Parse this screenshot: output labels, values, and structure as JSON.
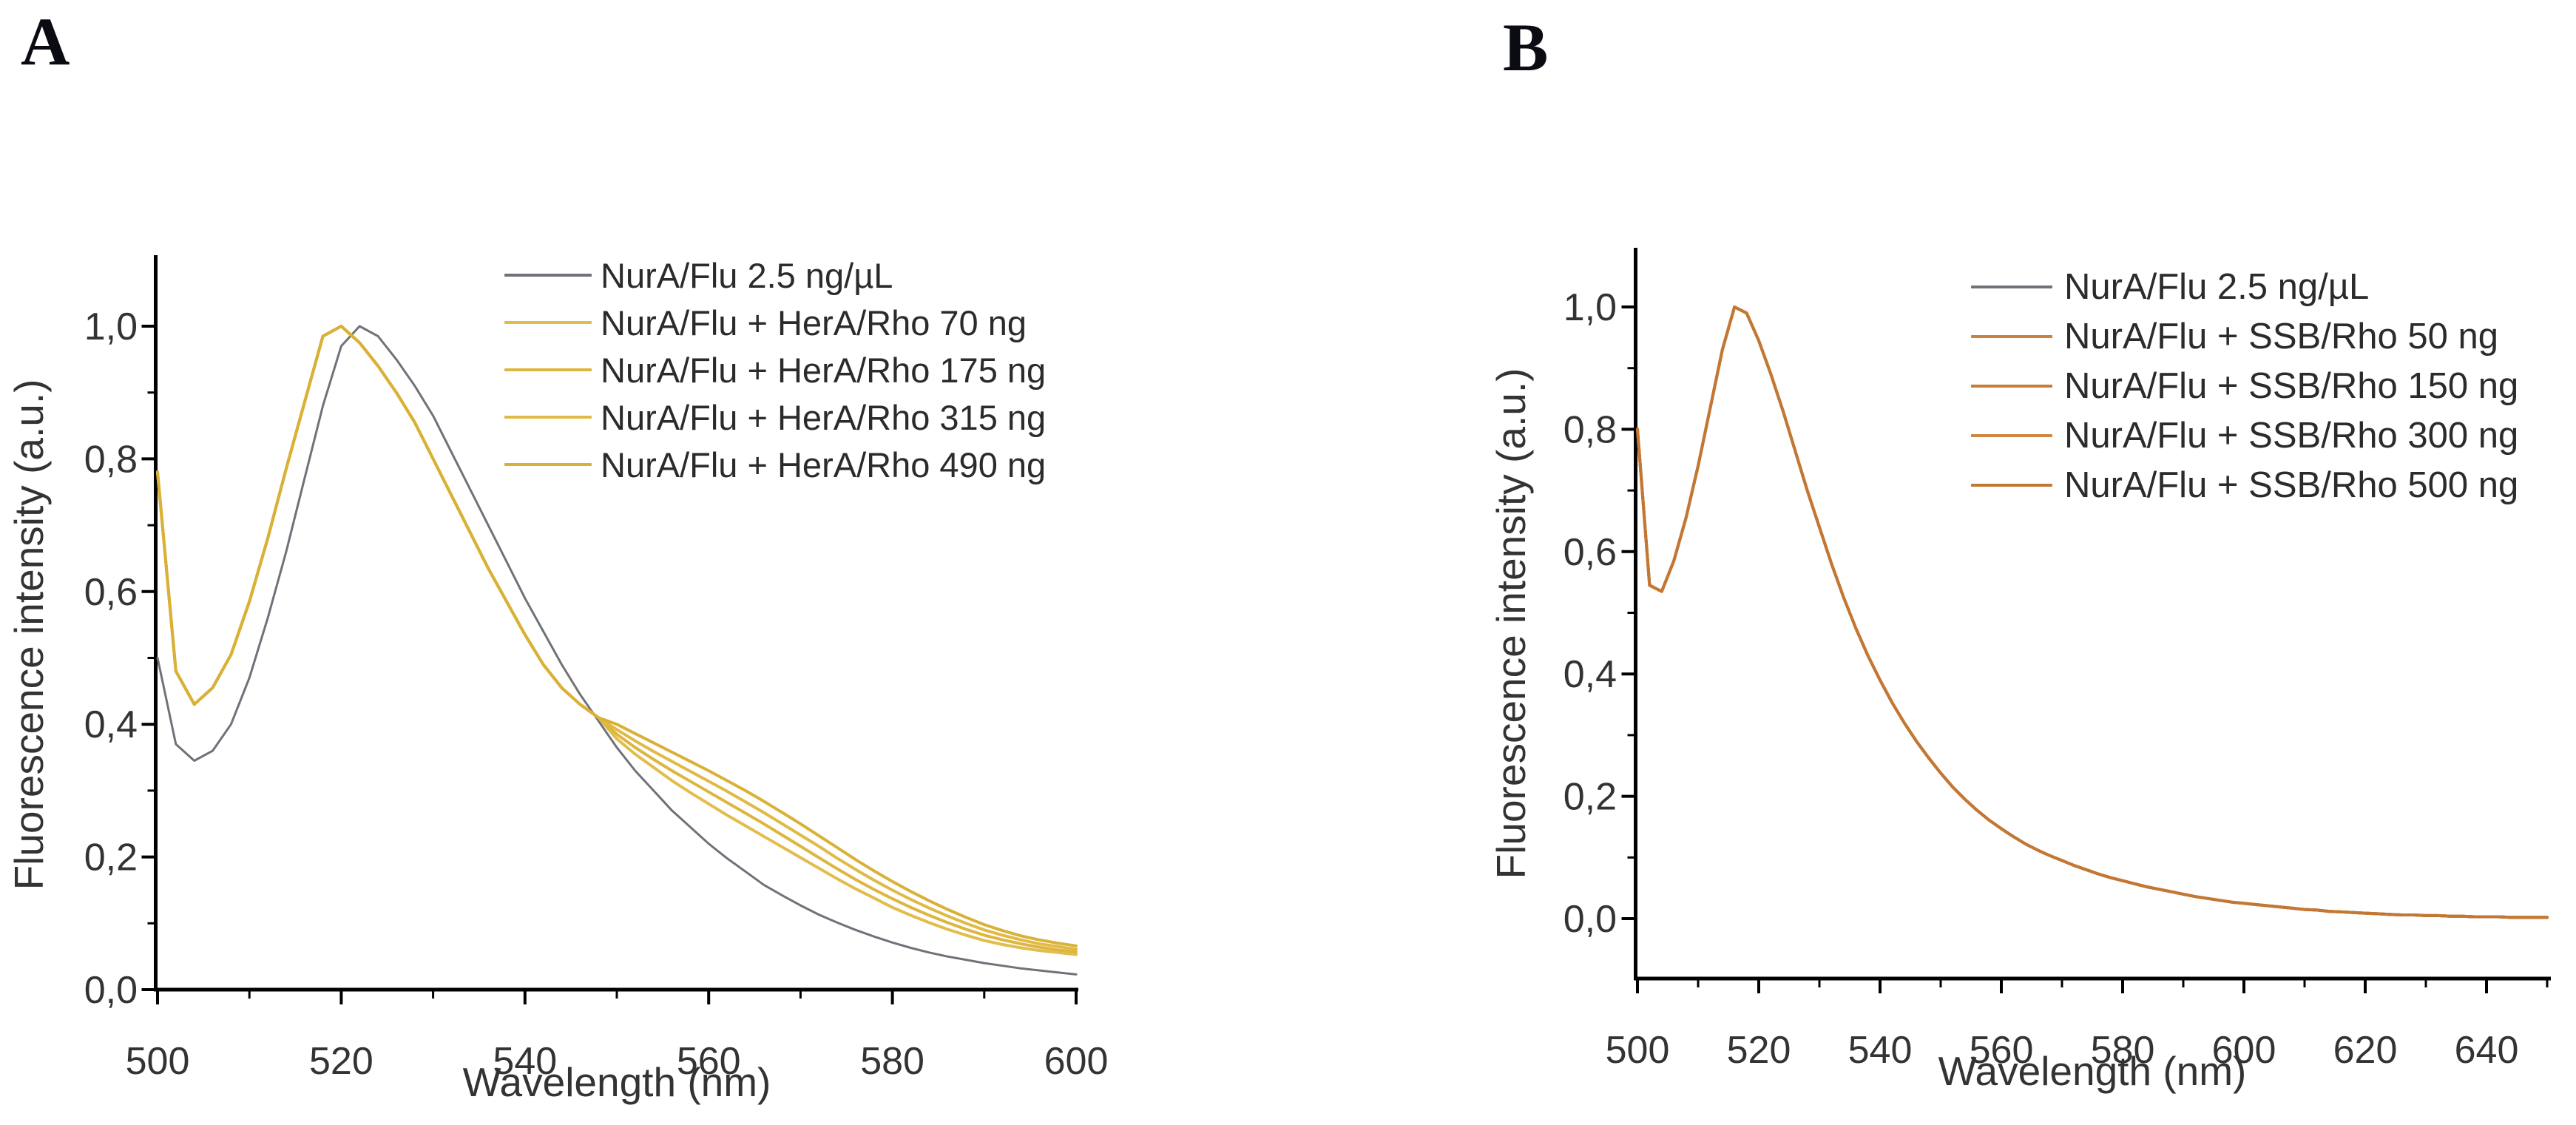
{
  "figure": {
    "background": "#ffffff",
    "axis_color": "#000000",
    "tick_label_color": "#3c3c3c"
  },
  "panels": [
    {
      "letter": "A"
    },
    {
      "letter": "B"
    }
  ],
  "chart_data": [
    {
      "type": "line",
      "panel": "A",
      "title": "",
      "xlabel": "Wavelength (nm)",
      "ylabel": "Fluorescence intensity (a.u.)",
      "xlim": [
        500,
        600
      ],
      "ylim": [
        0,
        1.1
      ],
      "grid": false,
      "legend_position": "top-right",
      "x_major_ticks": [
        500,
        520,
        540,
        560,
        580,
        600
      ],
      "x_major_labels": [
        "500",
        "520",
        "540",
        "560",
        "580",
        "600"
      ],
      "x_minor_ticks": [
        510,
        530,
        550,
        570,
        590
      ],
      "y_major_ticks": [
        0.0,
        0.2,
        0.4,
        0.6,
        0.8,
        1.0
      ],
      "y_major_labels": [
        "0,0",
        "0,2",
        "0,4",
        "0,6",
        "0,8",
        "1,0"
      ],
      "y_minor_ticks": [
        0.1,
        0.3,
        0.5,
        0.7,
        0.9
      ],
      "x_start": 500,
      "x_step": 2,
      "series": [
        {
          "name": "NurA/Flu 2.5 ng/µL",
          "color": "#70727a",
          "values": [
            0.5,
            0.37,
            0.345,
            0.36,
            0.4,
            0.47,
            0.56,
            0.66,
            0.77,
            0.88,
            0.97,
            1.0,
            0.985,
            0.95,
            0.91,
            0.865,
            0.81,
            0.755,
            0.7,
            0.645,
            0.59,
            0.54,
            0.49,
            0.445,
            0.405,
            0.365,
            0.33,
            0.3,
            0.27,
            0.245,
            0.22,
            0.198,
            0.178,
            0.158,
            0.142,
            0.127,
            0.113,
            0.101,
            0.09,
            0.08,
            0.071,
            0.063,
            0.056,
            0.05,
            0.045,
            0.04,
            0.036,
            0.032,
            0.029,
            0.026,
            0.023
          ]
        },
        {
          "name": "NurA/Flu + HerA/Rho 70 ng",
          "color": "#e2bd4c",
          "values": [
            0.78,
            0.48,
            0.43,
            0.455,
            0.505,
            0.585,
            0.68,
            0.785,
            0.885,
            0.985,
            1.0,
            0.975,
            0.94,
            0.9,
            0.855,
            0.8,
            0.745,
            0.69,
            0.635,
            0.585,
            0.535,
            0.49,
            0.455,
            0.43,
            0.41,
            0.378,
            0.355,
            0.335,
            0.315,
            0.297,
            0.28,
            0.263,
            0.247,
            0.231,
            0.215,
            0.199,
            0.183,
            0.167,
            0.152,
            0.138,
            0.124,
            0.112,
            0.101,
            0.091,
            0.082,
            0.074,
            0.068,
            0.063,
            0.059,
            0.056,
            0.053
          ]
        },
        {
          "name": "NurA/Flu + HerA/Rho 175 ng",
          "color": "#ddb63e",
          "values": [
            0.78,
            0.48,
            0.43,
            0.455,
            0.505,
            0.585,
            0.68,
            0.785,
            0.885,
            0.985,
            1.0,
            0.975,
            0.94,
            0.9,
            0.855,
            0.8,
            0.745,
            0.69,
            0.635,
            0.585,
            0.535,
            0.49,
            0.455,
            0.43,
            0.41,
            0.385,
            0.365,
            0.347,
            0.33,
            0.314,
            0.298,
            0.282,
            0.266,
            0.25,
            0.233,
            0.216,
            0.199,
            0.182,
            0.166,
            0.151,
            0.137,
            0.124,
            0.112,
            0.101,
            0.091,
            0.082,
            0.075,
            0.069,
            0.064,
            0.06,
            0.057
          ]
        },
        {
          "name": "NurA/Flu + HerA/Rho 315 ng",
          "color": "#e0ba45",
          "values": [
            0.78,
            0.48,
            0.43,
            0.455,
            0.505,
            0.585,
            0.68,
            0.785,
            0.885,
            0.985,
            1.0,
            0.975,
            0.94,
            0.9,
            0.855,
            0.8,
            0.745,
            0.69,
            0.635,
            0.585,
            0.535,
            0.49,
            0.455,
            0.43,
            0.41,
            0.392,
            0.375,
            0.359,
            0.344,
            0.329,
            0.314,
            0.299,
            0.283,
            0.267,
            0.25,
            0.233,
            0.216,
            0.198,
            0.181,
            0.165,
            0.15,
            0.136,
            0.123,
            0.111,
            0.1,
            0.09,
            0.082,
            0.075,
            0.069,
            0.065,
            0.061
          ]
        },
        {
          "name": "NurA/Flu + HerA/Rho 490 ng",
          "color": "#d9b137",
          "values": [
            0.78,
            0.48,
            0.43,
            0.455,
            0.505,
            0.585,
            0.68,
            0.785,
            0.885,
            0.985,
            1.0,
            0.975,
            0.94,
            0.9,
            0.855,
            0.8,
            0.745,
            0.69,
            0.635,
            0.585,
            0.535,
            0.49,
            0.455,
            0.43,
            0.41,
            0.4,
            0.386,
            0.372,
            0.358,
            0.344,
            0.33,
            0.315,
            0.3,
            0.284,
            0.267,
            0.25,
            0.232,
            0.214,
            0.196,
            0.179,
            0.163,
            0.148,
            0.134,
            0.121,
            0.109,
            0.098,
            0.089,
            0.081,
            0.075,
            0.07,
            0.066
          ]
        }
      ]
    },
    {
      "type": "line",
      "panel": "B",
      "title": "",
      "xlabel": "Wavelength (nm)",
      "ylabel": "Fluorescence intensity (a.u.)",
      "xlim": [
        500,
        650
      ],
      "ylim": [
        -0.1,
        1.1
      ],
      "grid": false,
      "legend_position": "top-right",
      "x_major_ticks": [
        500,
        520,
        540,
        560,
        580,
        600,
        620,
        640
      ],
      "x_major_labels": [
        "500",
        "520",
        "540",
        "560",
        "580",
        "600",
        "620",
        "640"
      ],
      "x_minor_ticks": [
        510,
        530,
        550,
        570,
        590,
        610,
        630,
        650
      ],
      "y_major_ticks": [
        0.0,
        0.2,
        0.4,
        0.6,
        0.8,
        1.0
      ],
      "y_major_labels": [
        "0,0",
        "0,2",
        "0,4",
        "0,6",
        "0,8",
        "1,0"
      ],
      "y_minor_ticks": [
        0.1,
        0.3,
        0.5,
        0.7,
        0.9
      ],
      "x_start": 500,
      "x_step": 2,
      "series": [
        {
          "name": "NurA/Flu 2.5 ng/µL",
          "color": "#70727a",
          "values": [
            0.8,
            0.545,
            0.535,
            0.585,
            0.655,
            0.74,
            0.835,
            0.93,
            1.0,
            0.99,
            0.945,
            0.89,
            0.83,
            0.765,
            0.7,
            0.64,
            0.58,
            0.525,
            0.475,
            0.43,
            0.39,
            0.353,
            0.32,
            0.29,
            0.263,
            0.238,
            0.215,
            0.195,
            0.177,
            0.161,
            0.147,
            0.134,
            0.122,
            0.112,
            0.103,
            0.095,
            0.087,
            0.08,
            0.073,
            0.067,
            0.062,
            0.057,
            0.052,
            0.048,
            0.044,
            0.04,
            0.036,
            0.033,
            0.03,
            0.027,
            0.025,
            0.023,
            0.021,
            0.019,
            0.017,
            0.015,
            0.014,
            0.012,
            0.011,
            0.01,
            0.009,
            0.008,
            0.007,
            0.006,
            0.006,
            0.005,
            0.005,
            0.004,
            0.004,
            0.003,
            0.003,
            0.003,
            0.002,
            0.002,
            0.002,
            0.002
          ]
        },
        {
          "name": "NurA/Flu + SSB/Rho 50 ng",
          "color": "#cd8140",
          "values": [
            0.8,
            0.545,
            0.535,
            0.585,
            0.655,
            0.74,
            0.835,
            0.93,
            1.0,
            0.99,
            0.945,
            0.89,
            0.83,
            0.765,
            0.7,
            0.64,
            0.58,
            0.525,
            0.475,
            0.43,
            0.39,
            0.353,
            0.32,
            0.29,
            0.263,
            0.238,
            0.215,
            0.195,
            0.177,
            0.161,
            0.147,
            0.134,
            0.122,
            0.112,
            0.103,
            0.095,
            0.087,
            0.08,
            0.073,
            0.067,
            0.062,
            0.057,
            0.052,
            0.048,
            0.044,
            0.04,
            0.036,
            0.033,
            0.03,
            0.027,
            0.025,
            0.023,
            0.021,
            0.019,
            0.017,
            0.015,
            0.014,
            0.012,
            0.011,
            0.01,
            0.009,
            0.008,
            0.007,
            0.006,
            0.006,
            0.005,
            0.005,
            0.004,
            0.004,
            0.003,
            0.003,
            0.003,
            0.002,
            0.002,
            0.002,
            0.002
          ]
        },
        {
          "name": "NurA/Flu + SSB/Rho 150 ng",
          "color": "#c87a38",
          "values": [
            0.8,
            0.545,
            0.535,
            0.585,
            0.655,
            0.74,
            0.835,
            0.93,
            1.0,
            0.99,
            0.945,
            0.89,
            0.83,
            0.765,
            0.7,
            0.64,
            0.58,
            0.525,
            0.475,
            0.43,
            0.39,
            0.353,
            0.32,
            0.29,
            0.263,
            0.238,
            0.215,
            0.195,
            0.177,
            0.161,
            0.147,
            0.134,
            0.122,
            0.112,
            0.103,
            0.095,
            0.087,
            0.08,
            0.073,
            0.067,
            0.062,
            0.057,
            0.052,
            0.048,
            0.044,
            0.04,
            0.036,
            0.033,
            0.03,
            0.027,
            0.025,
            0.023,
            0.021,
            0.019,
            0.017,
            0.015,
            0.014,
            0.012,
            0.011,
            0.01,
            0.009,
            0.008,
            0.007,
            0.006,
            0.006,
            0.005,
            0.005,
            0.004,
            0.004,
            0.003,
            0.003,
            0.003,
            0.002,
            0.002,
            0.002,
            0.002
          ]
        },
        {
          "name": "NurA/Flu + SSB/Rho 300 ng",
          "color": "#d08543",
          "values": [
            0.8,
            0.545,
            0.535,
            0.585,
            0.655,
            0.74,
            0.835,
            0.93,
            1.0,
            0.99,
            0.945,
            0.89,
            0.83,
            0.765,
            0.7,
            0.64,
            0.58,
            0.525,
            0.475,
            0.43,
            0.39,
            0.353,
            0.32,
            0.29,
            0.263,
            0.238,
            0.215,
            0.195,
            0.177,
            0.161,
            0.147,
            0.134,
            0.122,
            0.112,
            0.103,
            0.095,
            0.087,
            0.08,
            0.073,
            0.067,
            0.062,
            0.057,
            0.052,
            0.048,
            0.044,
            0.04,
            0.036,
            0.033,
            0.03,
            0.027,
            0.025,
            0.023,
            0.021,
            0.019,
            0.017,
            0.015,
            0.014,
            0.012,
            0.011,
            0.01,
            0.009,
            0.008,
            0.007,
            0.006,
            0.006,
            0.005,
            0.005,
            0.004,
            0.004,
            0.003,
            0.003,
            0.003,
            0.002,
            0.002,
            0.002,
            0.002
          ]
        },
        {
          "name": "NurA/Flu + SSB/Rho 500 ng",
          "color": "#c37734",
          "values": [
            0.8,
            0.545,
            0.535,
            0.585,
            0.655,
            0.74,
            0.835,
            0.93,
            1.0,
            0.99,
            0.945,
            0.89,
            0.83,
            0.765,
            0.7,
            0.64,
            0.58,
            0.525,
            0.475,
            0.43,
            0.39,
            0.353,
            0.32,
            0.29,
            0.263,
            0.238,
            0.215,
            0.195,
            0.177,
            0.161,
            0.147,
            0.134,
            0.122,
            0.112,
            0.103,
            0.095,
            0.087,
            0.08,
            0.073,
            0.067,
            0.062,
            0.057,
            0.052,
            0.048,
            0.044,
            0.04,
            0.036,
            0.033,
            0.03,
            0.027,
            0.025,
            0.023,
            0.021,
            0.019,
            0.017,
            0.015,
            0.014,
            0.012,
            0.011,
            0.01,
            0.009,
            0.008,
            0.007,
            0.006,
            0.006,
            0.005,
            0.005,
            0.004,
            0.004,
            0.003,
            0.003,
            0.003,
            0.002,
            0.002,
            0.002,
            0.002
          ]
        }
      ]
    }
  ]
}
